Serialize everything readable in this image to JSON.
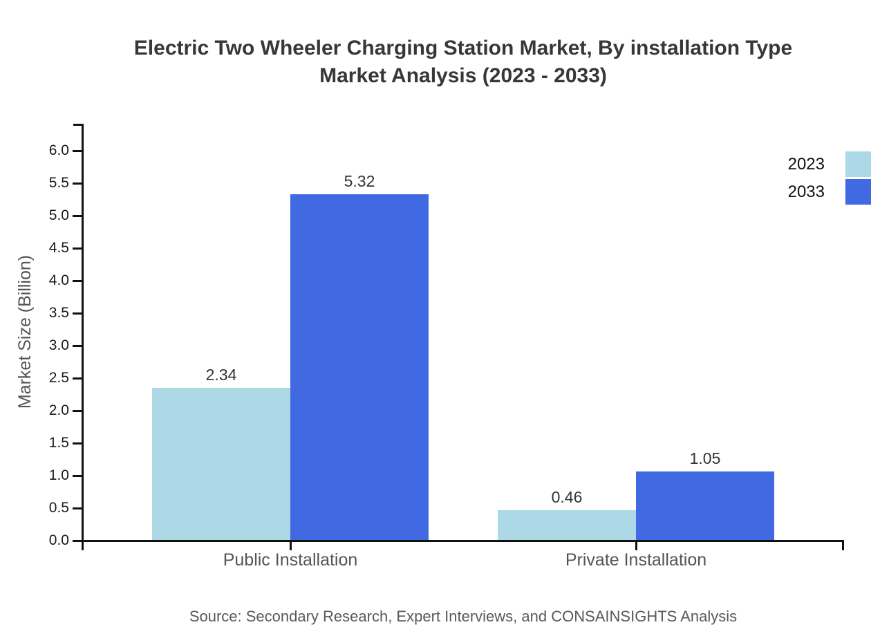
{
  "page": {
    "title_line1": "Electric Two Wheeler Charging Station Market, By installation Type",
    "title_line2": "Market Analysis (2023 - 2033)",
    "source": "Source: Secondary Research, Expert Interviews, and CONSAINSIGHTS Analysis"
  },
  "chart_data": {
    "type": "bar",
    "title": "Electric Two Wheeler Charging Station Market, By installation Type Market Analysis (2023 - 2033)",
    "categories": [
      "Public Installation",
      "Private Installation"
    ],
    "series": [
      {
        "name": "2023",
        "color": "#ADD8E6",
        "values": [
          2.34,
          0.46
        ]
      },
      {
        "name": "2033",
        "color": "#4169E1",
        "values": [
          5.32,
          1.05
        ]
      }
    ],
    "bar_value_labels": [
      [
        "2.34",
        "0.46"
      ],
      [
        "5.32",
        "1.05"
      ]
    ],
    "xlabel": "",
    "ylabel": "Market Size (Billion)",
    "ylim": [
      0.0,
      6.5
    ],
    "yticks": [
      0.0,
      0.5,
      1.0,
      1.5,
      2.0,
      2.5,
      3.0,
      3.5,
      4.0,
      4.5,
      5.0,
      5.5,
      6.0
    ],
    "ytick_labels": [
      "0.0",
      "0.5",
      "1.0",
      "1.5",
      "2.0",
      "2.5",
      "3.0",
      "3.5",
      "4.0",
      "4.5",
      "5.0",
      "5.5",
      "6.0"
    ],
    "grid": false,
    "legend_position": "top-right",
    "axis_color": "#111111",
    "colors": {
      "title_text": "#373737",
      "tick_text": "#1a1a1a",
      "axis_label_text": "#555555",
      "value_label_text": "#333333",
      "source_text": "#595959",
      "background": "#ffffff"
    }
  }
}
